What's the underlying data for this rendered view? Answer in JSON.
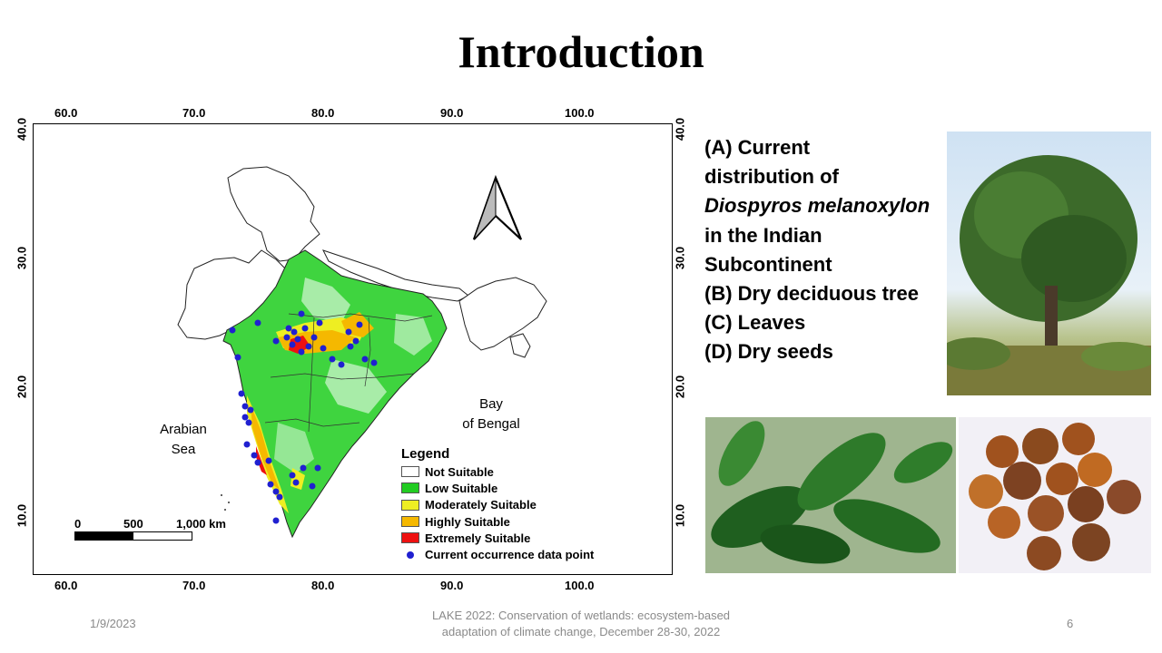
{
  "slide": {
    "title": "Introduction",
    "date": "1/9/2023",
    "footer_text_line1": "LAKE 2022: Conservation of wetlands: ecosystem-based",
    "footer_text_line2": "adaptation of climate change, December 28-30, 2022",
    "page_number": "6"
  },
  "map": {
    "x_ticks": [
      "60.0",
      "70.0",
      "80.0",
      "90.0",
      "100.0"
    ],
    "y_ticks": [
      "40.0",
      "30.0",
      "20.0",
      "10.0"
    ],
    "sea_label_1": "Arabian",
    "sea_label_2": "Sea",
    "bay_label_1": "Bay",
    "bay_label_2": "of Bengal",
    "scale_0": "0",
    "scale_500": "500",
    "scale_1000": "1,000 km",
    "legend": {
      "title": "Legend",
      "items": [
        {
          "label": "Not Suitable",
          "color": "#ffffff"
        },
        {
          "label": "Low Suitable",
          "color": "#22cc22"
        },
        {
          "label": "Moderately Suitable",
          "color": "#eeee22"
        },
        {
          "label": "Highly Suitable",
          "color": "#f5b800"
        },
        {
          "label": "Extremely Suitable",
          "color": "#ee1111"
        }
      ],
      "point_label": "Current occurrence data point",
      "point_color": "#2020d0"
    }
  },
  "description": {
    "line_a1": "(A) Current",
    "line_a2": "distribution of",
    "line_a3": "Diospyros melanoxylon",
    "line_a4": "in the Indian",
    "line_a5": "Subcontinent",
    "line_b": "(B) Dry deciduous tree",
    "line_c": "(C) Leaves",
    "line_d": "(D) Dry seeds"
  }
}
